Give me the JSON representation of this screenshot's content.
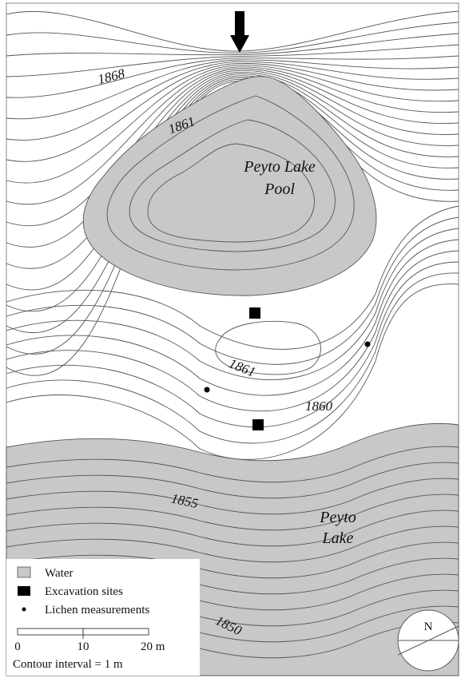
{
  "contour_labels": {
    "c1868": "1868",
    "c1861_top": "1861",
    "c1861_mid": "1861",
    "c1860": "1860",
    "c1855": "1855",
    "c1850": "1850"
  },
  "water_labels": {
    "pool_line1": "Peyto Lake",
    "pool_line2": "Pool",
    "lake_line1": "Peyto",
    "lake_line2": "Lake"
  },
  "legend": {
    "water": "Water",
    "excavation": "Excavation sites",
    "lichen": "Lichen measurements",
    "scale_0": "0",
    "scale_10": "10",
    "scale_20": "20 m",
    "contour_interval": "Contour interval = 1 m"
  },
  "north_arrow": {
    "label": "N"
  },
  "colors": {
    "water_fill": "#c8c8c8",
    "contour_stroke": "#555555",
    "marker": "#000000"
  },
  "icons": {
    "flow_arrow": "arrow-down-icon",
    "north": "compass-icon",
    "excavation_marker": "square-icon",
    "lichen_marker": "dot-icon"
  }
}
